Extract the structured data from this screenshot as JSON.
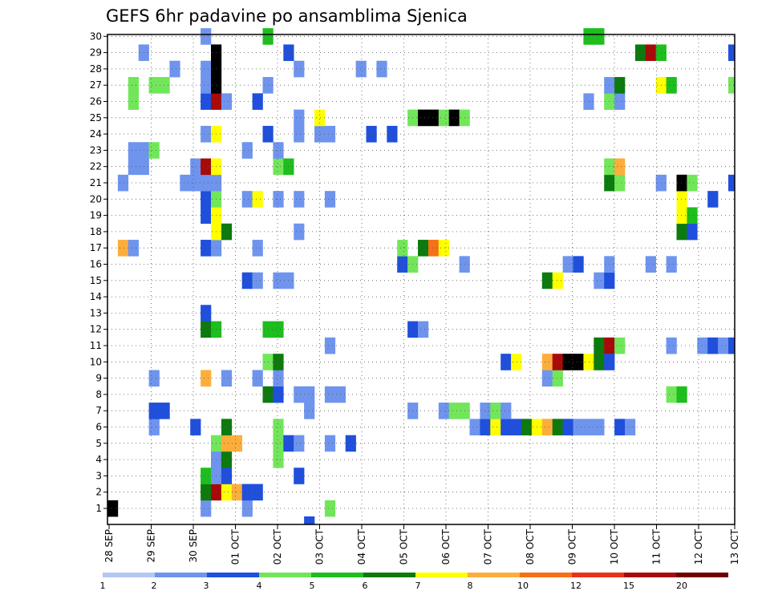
{
  "chart_data": {
    "type": "heatmap",
    "title": "GEFS 6hr padavine po ansamblima Sjenica",
    "y_ticks": [
      "1",
      "2",
      "3",
      "4",
      "5",
      "6",
      "7",
      "8",
      "9",
      "10",
      "11",
      "12",
      "13",
      "14",
      "15",
      "16",
      "17",
      "18",
      "19",
      "20",
      "21",
      "22",
      "23",
      "24",
      "25",
      "26",
      "27",
      "28",
      "29",
      "30"
    ],
    "x_ticks": [
      "28 SEP",
      "29 SEP",
      "30 SEP",
      "01 OCT",
      "02 OCT",
      "03 OCT",
      "04 OCT",
      "05 OCT",
      "06 OCT",
      "07 OCT",
      "08 OCT",
      "09 OCT",
      "10 OCT",
      "11 OCT",
      "12 OCT",
      "13 OCT"
    ],
    "grid": true,
    "colorbar": {
      "labels": [
        "1",
        "2",
        "3",
        "4",
        "5",
        "6",
        "7",
        "8",
        "10",
        "12",
        "15",
        "20"
      ],
      "colors": [
        "#b4c6f4",
        "#6e94ee",
        "#1f4fdc",
        "#72e65a",
        "#1dbe1d",
        "#0d7a0d",
        "#ffff00",
        "#fcae3c",
        "#f57016",
        "#e8321a",
        "#a80a0a",
        "#6e0000"
      ]
    },
    "cells": [
      [
        0,
        1,
        20
      ],
      [
        1,
        17,
        7
      ],
      [
        1,
        21,
        1
      ],
      [
        2,
        17,
        1
      ],
      [
        2,
        22,
        1
      ],
      [
        2,
        23,
        1
      ],
      [
        2,
        26,
        3
      ],
      [
        2,
        27,
        3
      ],
      [
        3,
        22,
        1
      ],
      [
        3,
        23,
        1
      ],
      [
        3,
        29,
        1
      ],
      [
        4,
        6,
        1
      ],
      [
        4,
        7,
        2
      ],
      [
        4,
        9,
        1
      ],
      [
        4,
        23,
        3
      ],
      [
        4,
        27,
        3
      ],
      [
        5,
        7,
        2
      ],
      [
        5,
        27,
        3
      ],
      [
        6,
        28,
        1
      ],
      [
        7,
        21,
        1
      ],
      [
        8,
        6,
        2
      ],
      [
        8,
        21,
        1
      ],
      [
        8,
        22,
        1
      ],
      [
        9,
        1,
        1
      ],
      [
        9,
        2,
        5
      ],
      [
        9,
        3,
        4
      ],
      [
        9,
        9,
        7
      ],
      [
        9,
        12,
        5
      ],
      [
        9,
        13,
        2
      ],
      [
        9,
        17,
        2
      ],
      [
        9,
        19,
        2
      ],
      [
        9,
        20,
        2
      ],
      [
        9,
        21,
        1
      ],
      [
        9,
        22,
        10
      ],
      [
        9,
        24,
        1
      ],
      [
        9,
        26,
        2
      ],
      [
        9,
        27,
        1
      ],
      [
        9,
        28,
        1
      ],
      [
        9,
        30,
        1
      ],
      [
        10,
        2,
        10
      ],
      [
        10,
        3,
        1
      ],
      [
        10,
        4,
        1
      ],
      [
        10,
        5,
        3
      ],
      [
        10,
        12,
        4
      ],
      [
        10,
        17,
        1
      ],
      [
        10,
        18,
        6
      ],
      [
        10,
        19,
        6
      ],
      [
        10,
        20,
        3
      ],
      [
        10,
        21,
        1
      ],
      [
        10,
        22,
        6
      ],
      [
        10,
        24,
        6
      ],
      [
        10,
        26,
        10
      ],
      [
        10,
        27,
        15
      ],
      [
        10,
        28,
        15
      ],
      [
        10,
        29,
        15
      ],
      [
        11,
        2,
        6
      ],
      [
        11,
        3,
        2
      ],
      [
        11,
        4,
        5
      ],
      [
        11,
        5,
        7
      ],
      [
        11,
        6,
        5
      ],
      [
        11,
        9,
        1
      ],
      [
        11,
        18,
        5
      ],
      [
        11,
        26,
        1
      ],
      [
        12,
        2,
        7
      ],
      [
        12,
        5,
        7
      ],
      [
        13,
        1,
        1
      ],
      [
        13,
        2,
        2
      ],
      [
        13,
        15,
        2
      ],
      [
        13,
        20,
        1
      ],
      [
        13,
        23,
        1
      ],
      [
        14,
        2,
        2
      ],
      [
        14,
        9,
        1
      ],
      [
        14,
        15,
        1
      ],
      [
        14,
        17,
        1
      ],
      [
        14,
        20,
        6
      ],
      [
        14,
        26,
        2
      ],
      [
        15,
        8,
        5
      ],
      [
        15,
        10,
        3
      ],
      [
        15,
        12,
        4
      ],
      [
        15,
        24,
        2
      ],
      [
        15,
        27,
        1
      ],
      [
        15,
        30,
        4
      ],
      [
        16,
        4,
        3
      ],
      [
        16,
        5,
        3
      ],
      [
        16,
        6,
        3
      ],
      [
        16,
        8,
        2
      ],
      [
        16,
        9,
        1
      ],
      [
        16,
        10,
        5
      ],
      [
        16,
        12,
        4
      ],
      [
        16,
        15,
        1
      ],
      [
        16,
        20,
        1
      ],
      [
        16,
        22,
        3
      ],
      [
        16,
        23,
        1
      ],
      [
        17,
        5,
        2
      ],
      [
        17,
        15,
        1
      ],
      [
        17,
        22,
        4
      ],
      [
        17,
        29,
        2
      ],
      [
        18,
        3,
        2
      ],
      [
        18,
        5,
        1
      ],
      [
        18,
        8,
        1
      ],
      [
        18,
        18,
        1
      ],
      [
        18,
        20,
        1
      ],
      [
        18,
        24,
        1
      ],
      [
        18,
        25,
        1
      ],
      [
        18,
        28,
        1
      ],
      [
        19,
        0,
        2
      ],
      [
        19,
        8,
        1
      ],
      [
        19,
        7,
        1
      ],
      [
        20,
        24,
        1
      ],
      [
        20,
        25,
        6
      ],
      [
        21,
        1,
        3
      ],
      [
        21,
        5,
        1
      ],
      [
        21,
        8,
        1
      ],
      [
        21,
        11,
        1
      ],
      [
        21,
        20,
        1
      ],
      [
        21,
        24,
        1
      ],
      [
        22,
        8,
        1
      ],
      [
        23,
        5,
        2
      ],
      [
        24,
        28,
        1
      ],
      [
        25,
        24,
        2
      ],
      [
        26,
        28,
        1
      ],
      [
        27,
        24,
        2
      ],
      [
        28,
        16,
        2
      ],
      [
        28,
        17,
        3
      ],
      [
        29,
        16,
        3
      ],
      [
        29,
        12,
        2
      ],
      [
        29,
        7,
        1
      ],
      [
        29,
        25,
        3
      ],
      [
        30,
        12,
        1
      ],
      [
        30,
        17,
        5
      ],
      [
        30,
        25,
        13
      ],
      [
        31,
        17,
        8
      ],
      [
        31,
        25,
        15
      ],
      [
        32,
        17,
        6
      ],
      [
        32,
        7,
        1
      ],
      [
        32,
        25,
        3
      ],
      [
        33,
        25,
        20
      ],
      [
        33,
        7,
        3
      ],
      [
        34,
        16,
        1
      ],
      [
        34,
        25,
        3
      ],
      [
        34,
        7,
        3
      ],
      [
        35,
        6,
        1
      ],
      [
        36,
        6,
        2
      ],
      [
        36,
        7,
        1
      ],
      [
        37,
        6,
        6
      ],
      [
        37,
        7,
        3
      ],
      [
        38,
        6,
        2
      ],
      [
        38,
        10,
        2
      ],
      [
        38,
        7,
        1
      ],
      [
        39,
        6,
        2
      ],
      [
        39,
        10,
        6
      ],
      [
        40,
        6,
        5
      ],
      [
        41,
        6,
        6
      ],
      [
        42,
        6,
        7
      ],
      [
        42,
        9,
        1
      ],
      [
        42,
        10,
        7
      ],
      [
        42,
        15,
        5
      ],
      [
        43,
        6,
        5
      ],
      [
        43,
        9,
        3
      ],
      [
        43,
        10,
        10
      ],
      [
        43,
        15,
        6
      ],
      [
        44,
        6,
        2
      ],
      [
        44,
        10,
        12
      ],
      [
        44,
        16,
        1
      ],
      [
        45,
        6,
        1
      ],
      [
        45,
        10,
        15
      ],
      [
        45,
        16,
        2
      ],
      [
        46,
        6,
        1
      ],
      [
        46,
        10,
        6
      ],
      [
        46,
        26,
        1
      ],
      [
        46,
        30,
        4
      ],
      [
        47,
        6,
        1
      ],
      [
        47,
        11,
        5
      ],
      [
        47,
        10,
        5
      ],
      [
        47,
        15,
        1
      ],
      [
        47,
        30,
        4
      ],
      [
        48,
        11,
        10
      ],
      [
        48,
        10,
        2
      ],
      [
        48,
        15,
        2
      ],
      [
        48,
        16,
        1
      ],
      [
        48,
        21,
        5
      ],
      [
        48,
        22,
        3
      ],
      [
        48,
        26,
        3
      ],
      [
        48,
        27,
        1
      ],
      [
        49,
        6,
        2
      ],
      [
        49,
        11,
        3
      ],
      [
        49,
        21,
        3
      ],
      [
        49,
        22,
        7
      ],
      [
        49,
        26,
        1
      ],
      [
        49,
        27,
        5
      ],
      [
        50,
        6,
        1
      ],
      [
        51,
        29,
        5
      ],
      [
        52,
        29,
        10
      ],
      [
        52,
        16,
        1
      ],
      [
        53,
        29,
        4
      ],
      [
        53,
        27,
        6
      ],
      [
        53,
        21,
        1
      ],
      [
        54,
        8,
        3
      ],
      [
        54,
        11,
        1
      ],
      [
        54,
        16,
        1
      ],
      [
        54,
        27,
        4
      ],
      [
        55,
        8,
        4
      ],
      [
        55,
        18,
        5
      ],
      [
        55,
        19,
        6
      ],
      [
        55,
        20,
        6
      ],
      [
        55,
        21,
        15
      ],
      [
        56,
        18,
        2
      ],
      [
        56,
        19,
        4
      ],
      [
        56,
        21,
        3
      ],
      [
        57,
        11,
        1
      ],
      [
        58,
        11,
        2
      ],
      [
        58,
        20,
        2
      ],
      [
        59,
        11,
        1
      ],
      [
        60,
        11,
        2
      ],
      [
        60,
        21,
        2
      ],
      [
        60,
        27,
        3
      ],
      [
        60,
        29,
        2
      ],
      [
        61,
        11,
        3
      ],
      [
        61,
        23,
        4
      ],
      [
        61,
        24,
        6
      ]
    ]
  }
}
